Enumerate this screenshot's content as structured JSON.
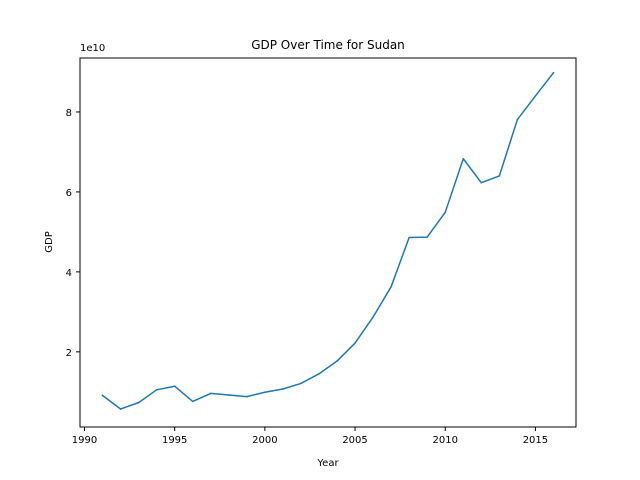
{
  "chart_data": {
    "type": "line",
    "title": "GDP Over Time for Sudan",
    "xlabel": "Year",
    "ylabel": "GDP",
    "y_scale_label": "1e10",
    "xlim": [
      1989.75,
      2017.25
    ],
    "ylim": [
      1200000000.0,
      93500000000.0
    ],
    "x_ticks": [
      1990,
      1995,
      2000,
      2005,
      2010,
      2015
    ],
    "x_tick_labels": [
      "1990",
      "1995",
      "2000",
      "2005",
      "2010",
      "2015"
    ],
    "y_ticks": [
      20000000000.0,
      40000000000.0,
      60000000000.0,
      80000000000.0
    ],
    "y_tick_labels": [
      "2",
      "4",
      "6",
      "8"
    ],
    "grid": false,
    "line_color": "#1f77b4",
    "series": [
      {
        "x": [
          1991,
          1992,
          1993,
          1994,
          1995,
          1996,
          1997,
          1998,
          1999,
          2000,
          2001,
          2002,
          2003,
          2004,
          2005,
          2006,
          2007,
          2008,
          2009,
          2010,
          2011,
          2012,
          2013,
          2014,
          2015,
          2016
        ],
        "values": [
          9100000000.0,
          5700000000.0,
          7300000000.0,
          10500000000.0,
          11400000000.0,
          7600000000.0,
          9600000000.0,
          9200000000.0,
          8800000000.0,
          9900000000.0,
          10700000000.0,
          12100000000.0,
          14500000000.0,
          17700000000.0,
          22200000000.0,
          28700000000.0,
          36300000000.0,
          48600000000.0,
          48700000000.0,
          54900000000.0,
          68300000000.0,
          62300000000.0,
          64000000000.0,
          78100000000.0,
          84000000000.0,
          89800000000.0
        ]
      }
    ]
  }
}
